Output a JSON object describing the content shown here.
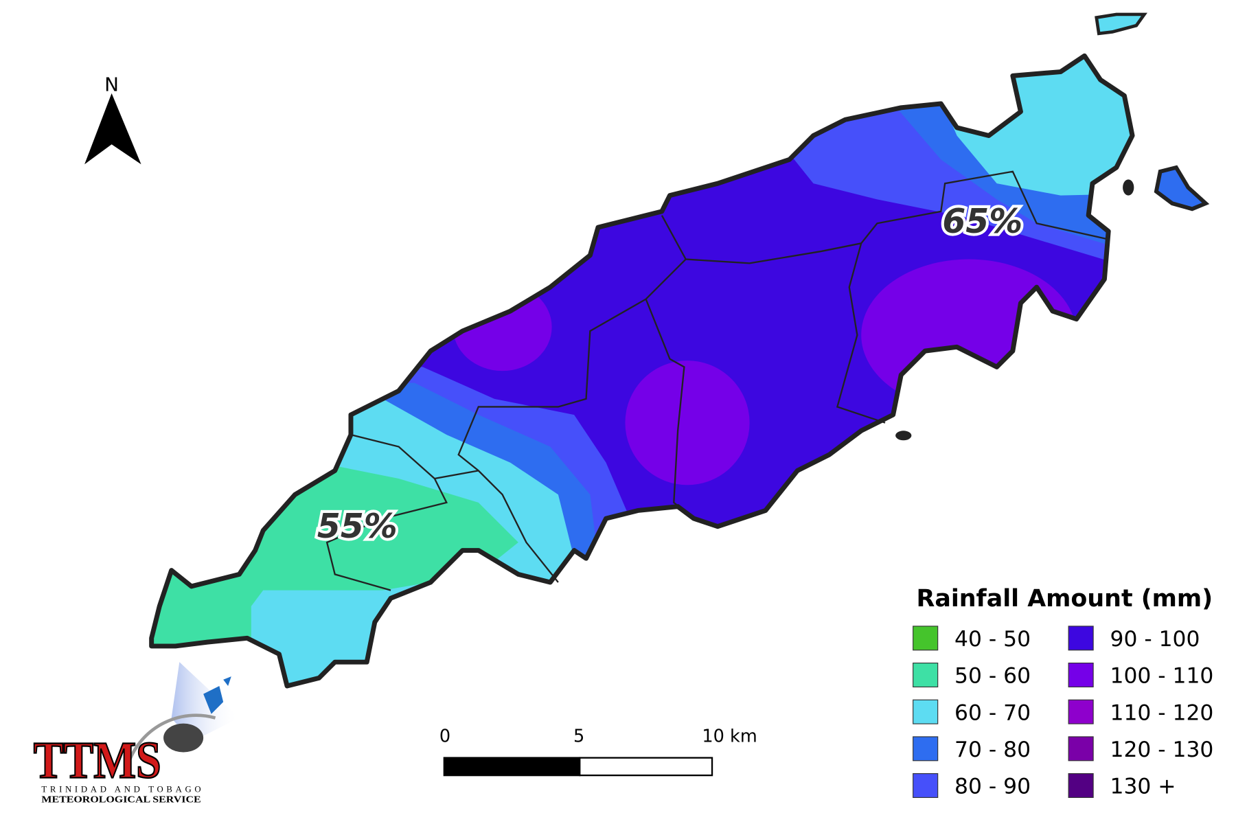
{
  "north": "N",
  "annotations": [
    {
      "text": "65%"
    },
    {
      "text": "55%"
    }
  ],
  "legend": {
    "title": "Rainfall Amount (mm)",
    "items": [
      {
        "label": "40 - 50",
        "color": "#45c42c"
      },
      {
        "label": "50 - 60",
        "color": "#3ee0a5"
      },
      {
        "label": "60 - 70",
        "color": "#5ddcf2"
      },
      {
        "label": "70 - 80",
        "color": "#2e6df0"
      },
      {
        "label": "80 - 90",
        "color": "#4650fa"
      },
      {
        "label": "90 - 100",
        "color": "#3d07e0"
      },
      {
        "label": "100 - 110",
        "color": "#7500e8"
      },
      {
        "label": "110 - 120",
        "color": "#8e00cc"
      },
      {
        "label": "120 - 130",
        "color": "#7a00a8"
      },
      {
        "label": "130 +",
        "color": "#530083"
      }
    ]
  },
  "scale_bar": {
    "labels": [
      "0",
      "5",
      "10 km"
    ]
  },
  "logo": {
    "name": "TTMS",
    "line1": "TRINIDAD AND TOBAGO",
    "line2": "METEOROLOGICAL SERVICE"
  }
}
